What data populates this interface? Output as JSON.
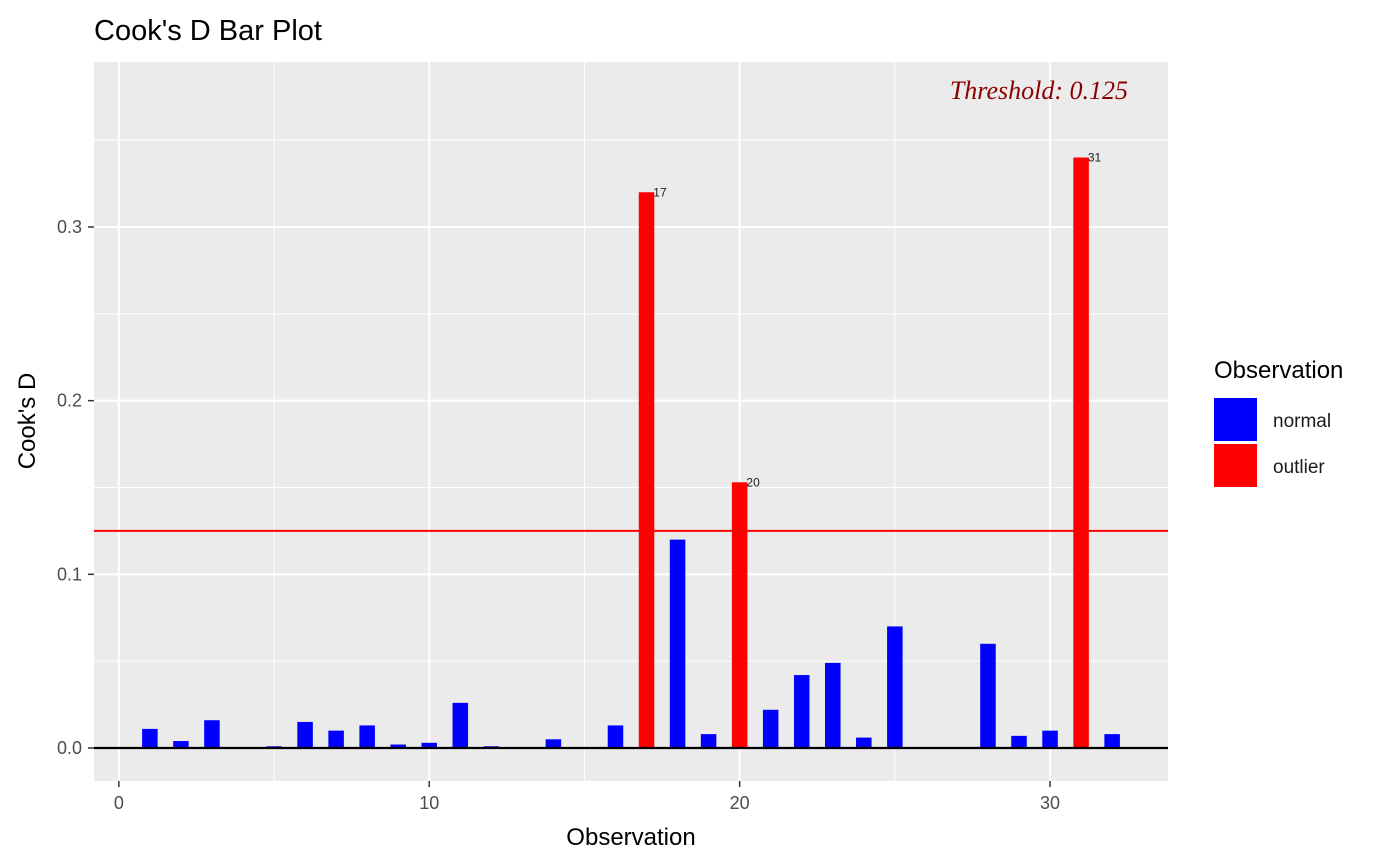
{
  "chart_data": {
    "type": "bar",
    "title": "Cook's D Bar Plot",
    "xlabel": "Observation",
    "ylabel": "Cook's D",
    "xlim": [
      -0.8,
      33.8
    ],
    "ylim": [
      -0.019,
      0.395
    ],
    "x_ticks": [
      0,
      10,
      20,
      30
    ],
    "y_ticks": [
      0.0,
      0.1,
      0.2,
      0.3
    ],
    "y_tick_labels": [
      "0.0",
      "0.1",
      "0.2",
      "0.3"
    ],
    "grid": true,
    "legend_position": "right",
    "threshold": {
      "value": 0.125,
      "label": "Threshold: 0.125",
      "color": "#ff0000",
      "label_color": "#8b0000"
    },
    "legend": {
      "title": "Observation",
      "items": [
        {
          "label": "normal",
          "color": "#0000ff"
        },
        {
          "label": "outlier",
          "color": "#ff0000"
        }
      ]
    },
    "bars": [
      {
        "x": 1,
        "value": 0.011,
        "group": "normal"
      },
      {
        "x": 2,
        "value": 0.004,
        "group": "normal"
      },
      {
        "x": 3,
        "value": 0.016,
        "group": "normal"
      },
      {
        "x": 4,
        "value": 0.0,
        "group": "normal"
      },
      {
        "x": 5,
        "value": 0.001,
        "group": "normal"
      },
      {
        "x": 6,
        "value": 0.015,
        "group": "normal"
      },
      {
        "x": 7,
        "value": 0.01,
        "group": "normal"
      },
      {
        "x": 8,
        "value": 0.013,
        "group": "normal"
      },
      {
        "x": 9,
        "value": 0.002,
        "group": "normal"
      },
      {
        "x": 10,
        "value": 0.003,
        "group": "normal"
      },
      {
        "x": 11,
        "value": 0.026,
        "group": "normal"
      },
      {
        "x": 12,
        "value": 0.001,
        "group": "normal"
      },
      {
        "x": 13,
        "value": 0.0,
        "group": "normal"
      },
      {
        "x": 14,
        "value": 0.005,
        "group": "normal"
      },
      {
        "x": 15,
        "value": 0.0,
        "group": "normal"
      },
      {
        "x": 16,
        "value": 0.013,
        "group": "normal"
      },
      {
        "x": 17,
        "value": 0.32,
        "group": "outlier",
        "label": "17"
      },
      {
        "x": 18,
        "value": 0.12,
        "group": "normal"
      },
      {
        "x": 19,
        "value": 0.008,
        "group": "normal"
      },
      {
        "x": 20,
        "value": 0.153,
        "group": "outlier",
        "label": "20"
      },
      {
        "x": 21,
        "value": 0.022,
        "group": "normal"
      },
      {
        "x": 22,
        "value": 0.042,
        "group": "normal"
      },
      {
        "x": 23,
        "value": 0.049,
        "group": "normal"
      },
      {
        "x": 24,
        "value": 0.006,
        "group": "normal"
      },
      {
        "x": 25,
        "value": 0.07,
        "group": "normal"
      },
      {
        "x": 26,
        "value": 0.0,
        "group": "normal"
      },
      {
        "x": 27,
        "value": 0.0,
        "group": "normal"
      },
      {
        "x": 28,
        "value": 0.06,
        "group": "normal"
      },
      {
        "x": 29,
        "value": 0.007,
        "group": "normal"
      },
      {
        "x": 30,
        "value": 0.01,
        "group": "normal"
      },
      {
        "x": 31,
        "value": 0.34,
        "group": "outlier",
        "label": "31"
      },
      {
        "x": 32,
        "value": 0.008,
        "group": "normal"
      }
    ]
  }
}
